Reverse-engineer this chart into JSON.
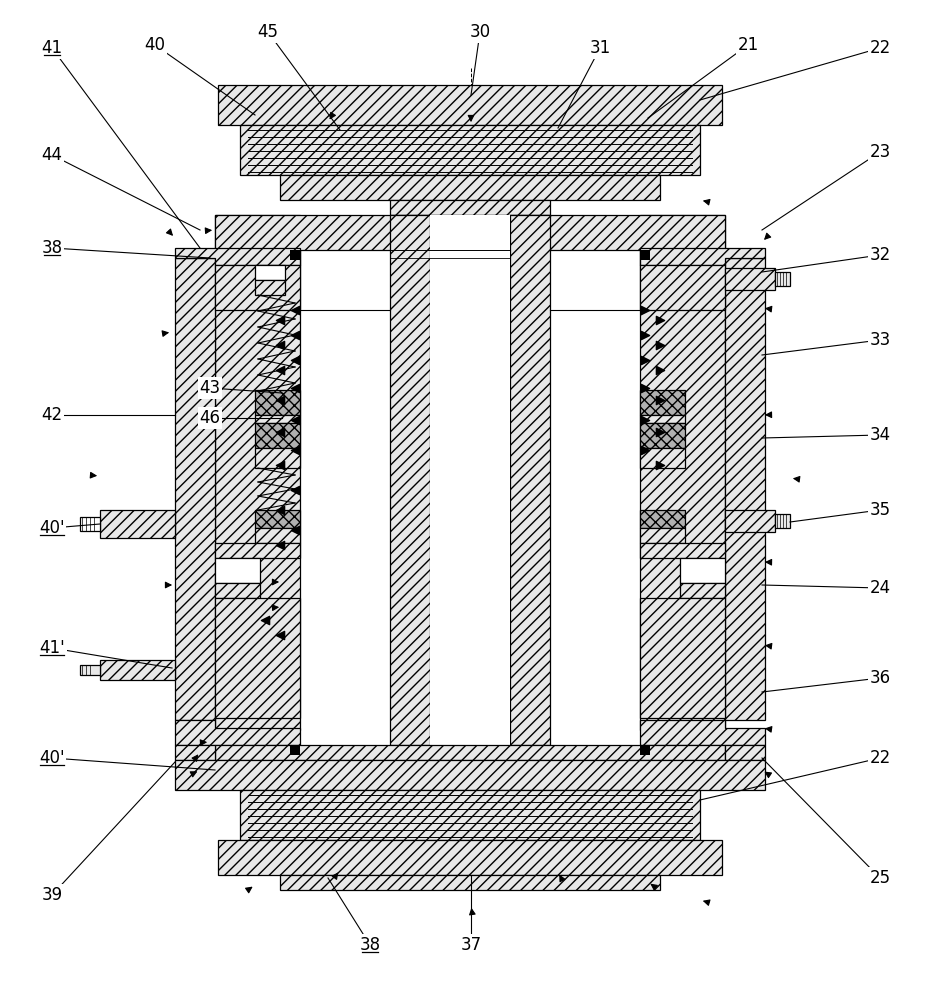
{
  "bg_color": "#ffffff",
  "line_color": "#000000",
  "METAL": "#e8e8e8",
  "SEAL": "#b0b0b0",
  "DARK": "#505050",
  "labels_left": [
    [
      "41",
      50,
      48,
      200,
      215
    ],
    [
      "40",
      160,
      45,
      260,
      110
    ],
    [
      "45",
      268,
      32,
      345,
      125
    ],
    [
      "44",
      50,
      155,
      215,
      215
    ],
    [
      "38",
      50,
      248,
      215,
      255
    ],
    [
      "42",
      50,
      418,
      160,
      410
    ],
    [
      "43",
      208,
      388,
      290,
      370
    ],
    [
      "46",
      208,
      418,
      295,
      400
    ],
    [
      "40'",
      50,
      528,
      120,
      540
    ],
    [
      "41'",
      50,
      648,
      175,
      700
    ],
    [
      "40'",
      50,
      758,
      218,
      775
    ],
    [
      "39",
      50,
      895,
      175,
      760
    ]
  ],
  "labels_right": [
    [
      "30",
      480,
      32,
      471,
      95
    ],
    [
      "31",
      600,
      48,
      560,
      120
    ],
    [
      "21",
      748,
      48,
      640,
      120
    ],
    [
      "22",
      880,
      48,
      695,
      100
    ],
    [
      "23",
      880,
      152,
      762,
      225
    ],
    [
      "32",
      880,
      255,
      762,
      285
    ],
    [
      "33",
      880,
      340,
      762,
      365
    ],
    [
      "34",
      880,
      435,
      762,
      440
    ],
    [
      "35",
      880,
      510,
      820,
      520
    ],
    [
      "24",
      880,
      588,
      762,
      590
    ],
    [
      "36",
      880,
      678,
      762,
      690
    ],
    [
      "22",
      880,
      758,
      695,
      800
    ],
    [
      "25",
      880,
      878,
      762,
      755
    ],
    [
      "37",
      471,
      945,
      471,
      850
    ],
    [
      "38",
      370,
      945,
      330,
      875
    ]
  ]
}
